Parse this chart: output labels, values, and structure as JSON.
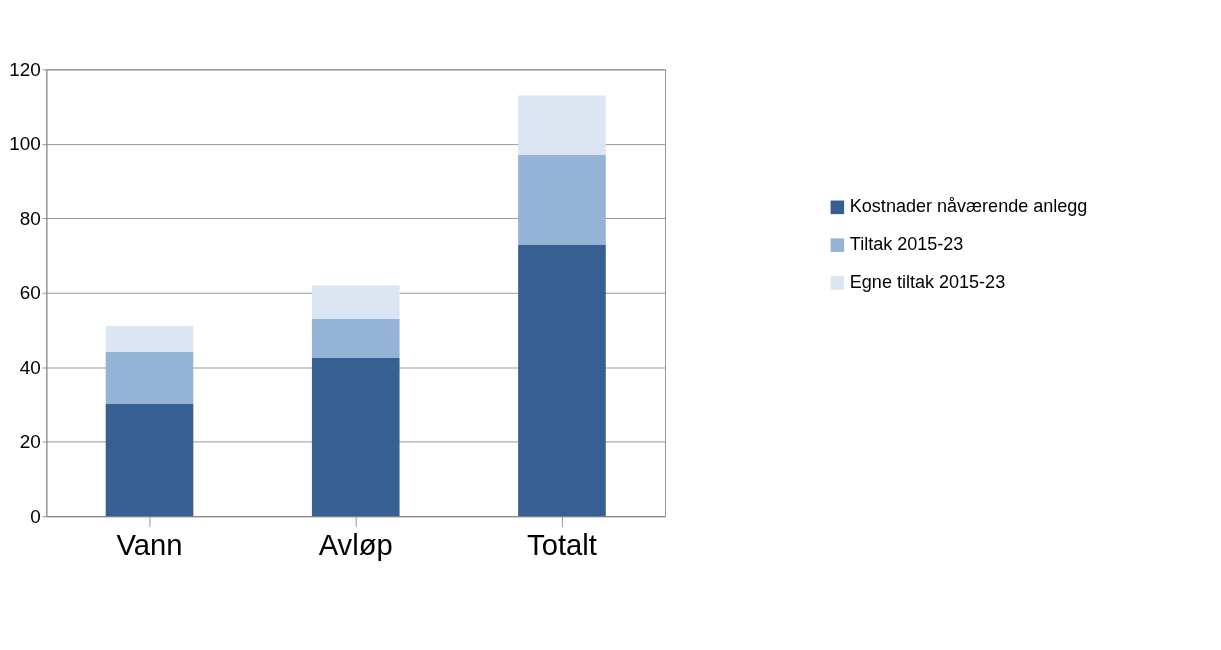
{
  "chart_data": {
    "type": "bar",
    "stacked": true,
    "categories": [
      "Vann",
      "Avløp",
      "Totalt"
    ],
    "series": [
      {
        "name": "Kostnader nåværende anlegg",
        "color": "#376092",
        "values": [
          30.3,
          42.5,
          73
        ]
      },
      {
        "name": "Tiltak 2015-23",
        "color": "#95b3d7",
        "values": [
          13.8,
          10.5,
          24
        ]
      },
      {
        "name": "Egne tiltak 2015-23",
        "color": "#dce6f2",
        "values": [
          7,
          9,
          16
        ]
      }
    ],
    "ylim": [
      0,
      120
    ],
    "yticks": [
      0,
      20,
      40,
      60,
      80,
      100,
      120
    ],
    "grid": "y",
    "legend": "right"
  }
}
